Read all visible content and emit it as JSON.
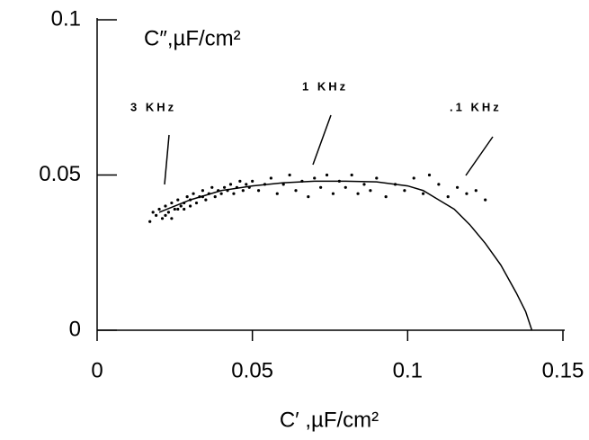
{
  "chart_data": {
    "type": "scatter",
    "y_label": "C″,µF/cm²",
    "x_label": "C′ ,µF/cm²",
    "xlim": [
      0,
      0.15
    ],
    "xticks": [
      0,
      0.05,
      0.1,
      0.15
    ],
    "ylim": [
      0,
      0.1
    ],
    "yticks": [
      0,
      0.05,
      0.1
    ],
    "color": "#000000",
    "annotations": [
      "3 KHz",
      "1 KHz",
      ".1 KHz"
    ],
    "points": {
      "x": [
        0.017,
        0.018,
        0.019,
        0.02,
        0.021,
        0.022,
        0.023,
        0.024,
        0.025,
        0.026,
        0.027,
        0.028,
        0.029,
        0.03,
        0.031,
        0.032,
        0.033,
        0.034,
        0.035,
        0.036,
        0.037,
        0.038,
        0.039,
        0.04,
        0.041,
        0.042,
        0.043,
        0.044,
        0.045,
        0.046,
        0.047,
        0.048,
        0.049,
        0.05,
        0.052,
        0.054,
        0.056,
        0.058,
        0.06,
        0.062,
        0.064,
        0.066,
        0.068,
        0.07,
        0.072,
        0.074,
        0.076,
        0.078,
        0.08,
        0.082,
        0.084,
        0.086,
        0.088,
        0.09,
        0.093,
        0.096,
        0.099,
        0.102,
        0.105,
        0.107,
        0.11,
        0.113,
        0.116,
        0.119,
        0.122,
        0.125,
        0.022,
        0.026,
        0.03,
        0.034,
        0.024,
        0.028
      ],
      "y": [
        0.035,
        0.038,
        0.037,
        0.039,
        0.036,
        0.04,
        0.038,
        0.041,
        0.039,
        0.042,
        0.04,
        0.041,
        0.043,
        0.042,
        0.044,
        0.041,
        0.043,
        0.045,
        0.042,
        0.044,
        0.046,
        0.043,
        0.045,
        0.044,
        0.046,
        0.045,
        0.047,
        0.044,
        0.046,
        0.048,
        0.045,
        0.047,
        0.046,
        0.048,
        0.045,
        0.047,
        0.049,
        0.044,
        0.047,
        0.05,
        0.045,
        0.048,
        0.043,
        0.049,
        0.046,
        0.05,
        0.044,
        0.048,
        0.046,
        0.05,
        0.044,
        0.047,
        0.045,
        0.049,
        0.043,
        0.047,
        0.045,
        0.049,
        0.044,
        0.05,
        0.047,
        0.043,
        0.046,
        0.044,
        0.045,
        0.042,
        0.037,
        0.039,
        0.04,
        0.043,
        0.036,
        0.039
      ]
    },
    "fit": {
      "x": [
        0.02,
        0.03,
        0.04,
        0.05,
        0.06,
        0.07,
        0.08,
        0.09,
        0.1,
        0.105,
        0.11,
        0.115,
        0.12,
        0.125,
        0.13,
        0.135,
        0.138,
        0.14
      ],
      "y": [
        0.038,
        0.042,
        0.045,
        0.0465,
        0.0475,
        0.048,
        0.048,
        0.0478,
        0.0465,
        0.045,
        0.042,
        0.039,
        0.034,
        0.028,
        0.021,
        0.012,
        0.006,
        0
      ]
    }
  }
}
